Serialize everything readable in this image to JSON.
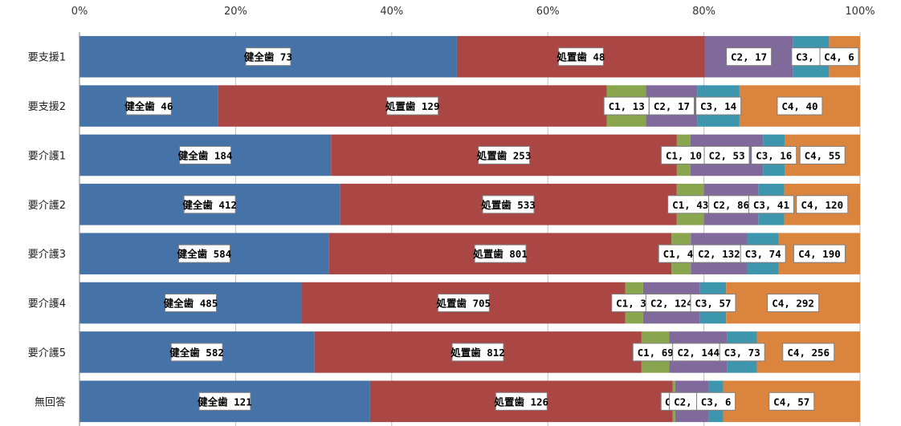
{
  "chart_data": {
    "type": "bar",
    "orientation": "horizontal",
    "stacked": "percent",
    "title": "",
    "xlabel": "",
    "ylabel": "",
    "xlim": [
      0,
      100
    ],
    "x_ticks": [
      "0%",
      "20%",
      "40%",
      "60%",
      "80%",
      "100%"
    ],
    "grid": true,
    "legend": "none",
    "categories": [
      "要支援1",
      "要支援2",
      "要介護1",
      "要介護2",
      "要介護3",
      "要介護4",
      "要介護5",
      "無回答"
    ],
    "series": [
      {
        "name": "健全歯",
        "color": "#4572a7",
        "values": [
          73,
          46,
          184,
          412,
          584,
          485,
          582,
          121
        ]
      },
      {
        "name": "処置歯",
        "color": "#aa4643",
        "values": [
          48,
          129,
          253,
          533,
          801,
          705,
          812,
          126
        ]
      },
      {
        "name": "C1",
        "color": "#89a54e",
        "values": [
          0,
          13,
          10,
          43,
          45,
          39,
          69,
          1
        ]
      },
      {
        "name": "C2",
        "color": "#80699b",
        "values": [
          17,
          17,
          53,
          86,
          132,
          124,
          144,
          14
        ]
      },
      {
        "name": "C3",
        "color": "#3d96ae",
        "values": [
          7,
          14,
          16,
          41,
          74,
          57,
          73,
          6
        ]
      },
      {
        "name": "C4",
        "color": "#db843d",
        "values": [
          6,
          40,
          55,
          120,
          190,
          292,
          256,
          57
        ]
      }
    ],
    "data_labels": [
      [
        "健全歯 73",
        "処置歯 48",
        "",
        "C2, 17",
        "C3, 7",
        "C4, 6"
      ],
      [
        "健全歯 46",
        "処置歯 129",
        "C1, 13",
        "C2, 17",
        "C3, 14",
        "C4, 40"
      ],
      [
        "健全歯 184",
        "処置歯 253",
        "C1, 10",
        "C2, 53",
        "C3, 16",
        "C4, 55"
      ],
      [
        "健全歯 412",
        "処置歯 533",
        "C1, 43",
        "C2, 86",
        "C3, 41",
        "C4, 120"
      ],
      [
        "健全歯 584",
        "処置歯 801",
        "C1, 45",
        "C2, 132",
        "C3, 74",
        "C4, 190"
      ],
      [
        "健全歯 485",
        "処置歯 705",
        "C1, 39",
        "C2, 124",
        "C3, 57",
        "C4, 292"
      ],
      [
        "健全歯 582",
        "処置歯 812",
        "C1, 69",
        "C2, 144",
        "C3, 73",
        "C4, 256"
      ],
      [
        "健全歯 121",
        "処置歯 126",
        "C1,",
        "C2, 14",
        "C3, 6",
        "C4, 57"
      ]
    ]
  }
}
